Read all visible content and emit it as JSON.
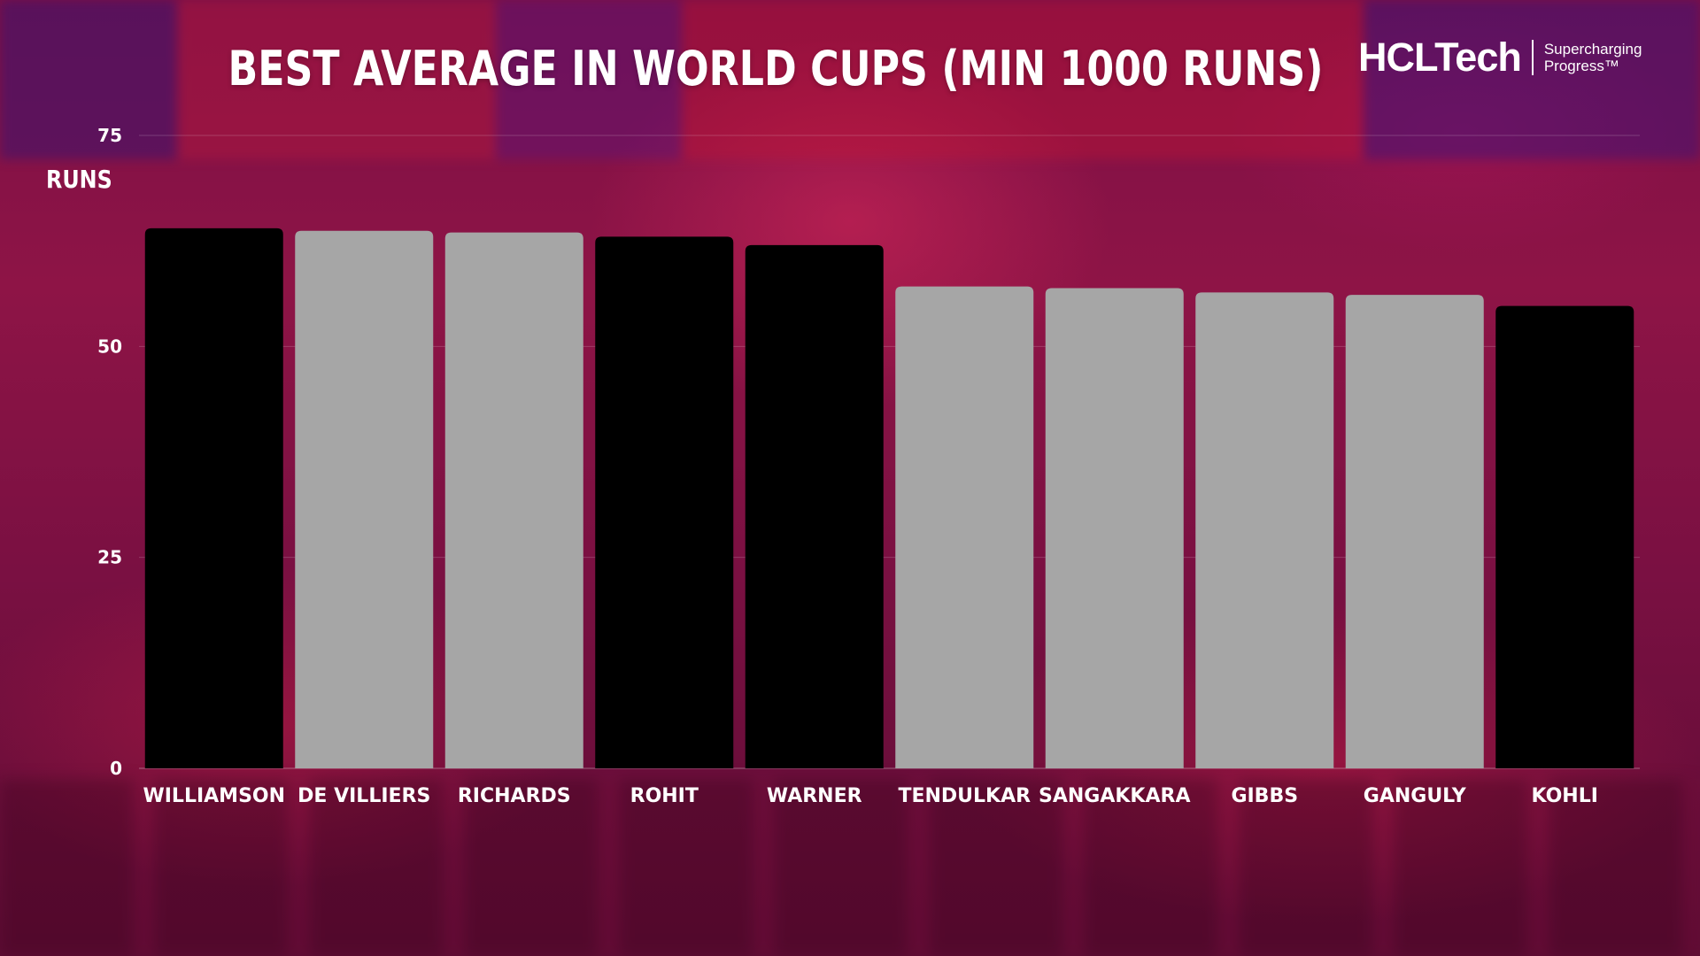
{
  "brand": {
    "name": "HCLTech",
    "tagline_line1": "Supercharging",
    "tagline_line2": "Progress™"
  },
  "chart_data": {
    "type": "bar",
    "title": "BEST AVERAGE IN WORLD CUPS (MIN 1000 RUNS)",
    "ylabel": "RUNS",
    "xlabel": "",
    "ylim": [
      0,
      75
    ],
    "yticks": [
      0,
      25,
      50,
      75
    ],
    "grid": true,
    "categories": [
      "WILLIAMSON",
      "DE VILLIERS",
      "RICHARDS",
      "ROHIT",
      "WARNER",
      "TENDULKAR",
      "SANGAKKARA",
      "GIBBS",
      "GANGULY",
      "KOHLI"
    ],
    "values": [
      64.0,
      63.7,
      63.5,
      63.0,
      62.0,
      57.1,
      56.9,
      56.4,
      56.1,
      54.8
    ],
    "colors": [
      "#000000",
      "#a6a6a6",
      "#a6a6a6",
      "#000000",
      "#000000",
      "#a6a6a6",
      "#a6a6a6",
      "#a6a6a6",
      "#a6a6a6",
      "#000000"
    ]
  }
}
